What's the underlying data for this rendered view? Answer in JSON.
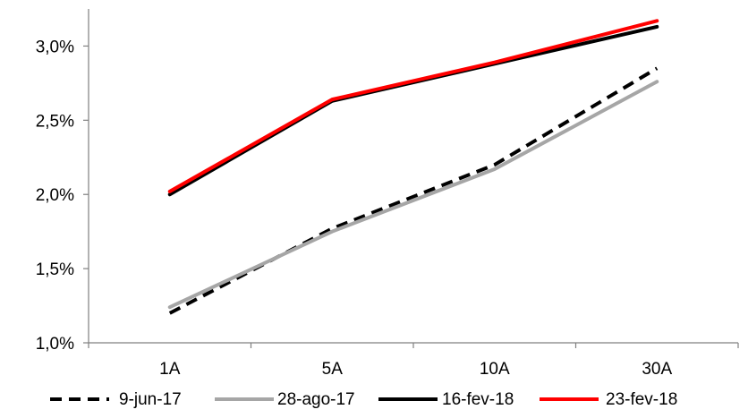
{
  "chart_data": {
    "type": "line",
    "categories": [
      "1A",
      "5A",
      "10A",
      "30A"
    ],
    "ylim": [
      1.0,
      3.25
    ],
    "yticks": [
      1.0,
      1.5,
      2.0,
      2.5,
      3.0
    ],
    "ytick_labels": [
      "1,0%",
      "1,5%",
      "2,0%",
      "2,5%",
      "3,0%"
    ],
    "grid": false,
    "legend_position": "bottom",
    "title": "",
    "xlabel": "",
    "ylabel": "",
    "series": [
      {
        "name": "9-jun-17",
        "values": [
          1.2,
          1.77,
          2.2,
          2.85
        ],
        "color": "#000000",
        "dash": "dashed"
      },
      {
        "name": "28-ago-17",
        "values": [
          1.24,
          1.75,
          2.17,
          2.76
        ],
        "color": "#a6a6a6",
        "dash": "solid"
      },
      {
        "name": "16-fev-18",
        "values": [
          2.0,
          2.63,
          2.88,
          3.13
        ],
        "color": "#000000",
        "dash": "solid"
      },
      {
        "name": "23-fev-18",
        "values": [
          2.02,
          2.64,
          2.89,
          3.17
        ],
        "color": "#ff0000",
        "dash": "solid"
      }
    ]
  }
}
